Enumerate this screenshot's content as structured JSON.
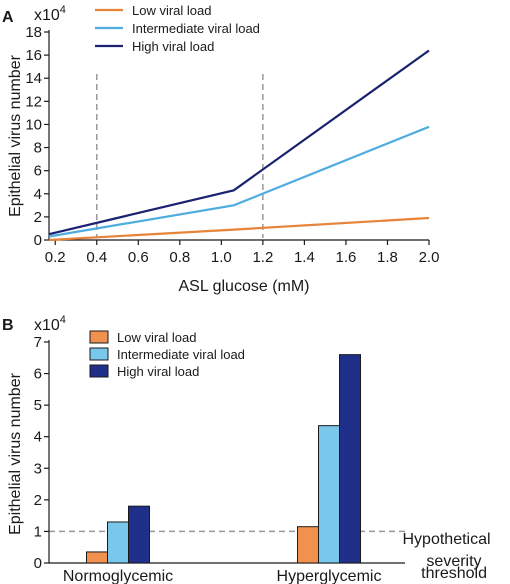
{
  "chart_data": [
    {
      "panel_label": "A",
      "type": "line",
      "xlabel": "ASL glucose (mM)",
      "ylabel": "Epithelial virus number",
      "y_multiplier_label": "x10",
      "y_multiplier_exponent": "4",
      "xlim": [
        0.17,
        2.0
      ],
      "ylim": [
        0,
        18
      ],
      "xticks": [
        0.2,
        0.4,
        0.6,
        0.8,
        1.0,
        1.2,
        1.4,
        1.6,
        1.8,
        2.0
      ],
      "xtick_labels": [
        "0.2",
        "0.4",
        "0.6",
        "0.8",
        "1.0",
        "1.2",
        "1.4",
        "1.6",
        "1.8",
        "2.0"
      ],
      "yticks": [
        0,
        2,
        4,
        6,
        8,
        10,
        12,
        14,
        16,
        18
      ],
      "ytick_labels": [
        "0",
        "2",
        "4",
        "6",
        "8",
        "10",
        "12",
        "14",
        "16",
        "18"
      ],
      "vertical_reference_lines": [
        0.4,
        1.2
      ],
      "grid": false,
      "legend_position": "top-left",
      "series": [
        {
          "name": "Low viral load",
          "color": "#E8833A",
          "x": [
            0.17,
            1.06,
            2.0
          ],
          "y": [
            0.0,
            0.9,
            1.9
          ]
        },
        {
          "name": "Intermediate viral load",
          "color": "#4EADDE",
          "x": [
            0.17,
            1.06,
            2.0
          ],
          "y": [
            0.3,
            3.0,
            9.8
          ]
        },
        {
          "name": "High viral load",
          "color": "#1B2270",
          "x": [
            0.17,
            1.06,
            2.0
          ],
          "y": [
            0.5,
            4.3,
            16.4
          ]
        }
      ]
    },
    {
      "panel_label": "B",
      "type": "bar",
      "ylabel": "Epithelial virus number",
      "y_multiplier_label": "x10",
      "y_multiplier_exponent": "4",
      "categories": [
        "Normoglycemic",
        "Hyperglycemic"
      ],
      "ylim": [
        0,
        7
      ],
      "yticks": [
        0,
        1,
        2,
        3,
        4,
        5,
        6,
        7
      ],
      "ytick_labels": [
        "0",
        "1",
        "2",
        "3",
        "4",
        "5",
        "6",
        "7"
      ],
      "grid": false,
      "legend_position": "top-left",
      "series": [
        {
          "name": "Low viral load",
          "color": "#F0924E",
          "values": [
            0.35,
            1.15
          ]
        },
        {
          "name": "Intermediate viral load",
          "color": "#7AC7EC",
          "values": [
            1.3,
            4.35
          ]
        },
        {
          "name": "High viral load",
          "color": "#1F2F8A",
          "values": [
            1.8,
            6.6
          ]
        }
      ],
      "threshold": {
        "value": 1.0,
        "label_lines": [
          "Hypothetical",
          "severity",
          "threshold"
        ]
      }
    }
  ]
}
